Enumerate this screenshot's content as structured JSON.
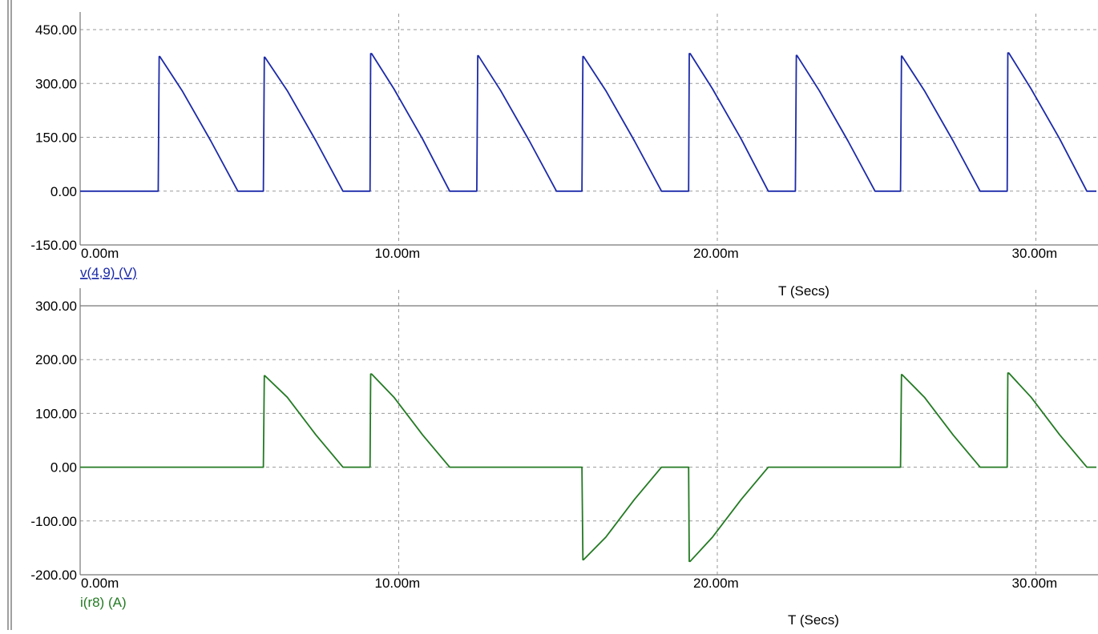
{
  "chart_data": [
    {
      "type": "line",
      "xlabel": "T (Secs)",
      "xlim": [
        0,
        0.0319
      ],
      "ylim": [
        -150,
        450
      ],
      "yticks": [
        -150,
        0,
        150,
        300,
        450
      ],
      "ytick_labels": [
        "-150.00",
        "0.00",
        "150.00",
        "300.00",
        "450.00"
      ],
      "xticks": [
        0,
        0.01,
        0.02,
        0.03
      ],
      "xtick_labels": [
        "0.00m",
        "10.00m",
        "20.00m",
        "30.00m"
      ],
      "grid": true,
      "series": [
        {
          "name": "v(4,9) (V)",
          "color": "#1c2aa8",
          "x": [
            0,
            0.00245,
            0.00248,
            0.0025,
            0.0032,
            0.0041,
            0.00495,
            0.00575,
            0.00578,
            0.0058,
            0.0065,
            0.0074,
            0.00825,
            0.0091,
            0.00912,
            0.00915,
            0.00985,
            0.01075,
            0.0116,
            0.01245,
            0.01248,
            0.0125,
            0.0132,
            0.0141,
            0.01495,
            0.01575,
            0.01578,
            0.0158,
            0.0165,
            0.0174,
            0.01825,
            0.0191,
            0.01912,
            0.01915,
            0.01985,
            0.02075,
            0.0216,
            0.02245,
            0.02248,
            0.0225,
            0.0232,
            0.0241,
            0.02495,
            0.02575,
            0.02578,
            0.0258,
            0.0265,
            0.0274,
            0.02825,
            0.0291,
            0.02912,
            0.02915,
            0.02985,
            0.03075,
            0.0316,
            0.0319
          ],
          "y": [
            0,
            0,
            375,
            375,
            280,
            140,
            0,
            0,
            373,
            373,
            280,
            140,
            0,
            0,
            383,
            383,
            285,
            145,
            0,
            0,
            377,
            377,
            280,
            140,
            0,
            0,
            375,
            375,
            280,
            140,
            0,
            0,
            383,
            383,
            285,
            145,
            0,
            0,
            378,
            378,
            280,
            140,
            0,
            0,
            376,
            376,
            280,
            140,
            0,
            0,
            385,
            385,
            285,
            145,
            0,
            0
          ]
        }
      ]
    },
    {
      "type": "line",
      "xlabel": "T (Secs)",
      "xlim": [
        0,
        0.0319
      ],
      "ylim": [
        -200,
        300
      ],
      "yticks": [
        -200,
        -100,
        0,
        100,
        200,
        300
      ],
      "ytick_labels": [
        "-200.00",
        "-100.00",
        "0.00",
        "100.00",
        "200.00",
        "300.00"
      ],
      "xticks": [
        0,
        0.01,
        0.02,
        0.03
      ],
      "xtick_labels": [
        "0.00m",
        "10.00m",
        "20.00m",
        "30.00m"
      ],
      "grid": true,
      "series": [
        {
          "name": "i(r8) (A)",
          "color": "#237a23",
          "x": [
            0,
            0.00575,
            0.00578,
            0.0058,
            0.0065,
            0.0074,
            0.00825,
            0.0091,
            0.00912,
            0.00915,
            0.00985,
            0.01075,
            0.0116,
            0.01575,
            0.01578,
            0.0158,
            0.0165,
            0.0174,
            0.01825,
            0.0191,
            0.01912,
            0.01915,
            0.01985,
            0.02075,
            0.0216,
            0.02575,
            0.02578,
            0.0258,
            0.0265,
            0.0274,
            0.02825,
            0.0291,
            0.02912,
            0.02915,
            0.02985,
            0.03075,
            0.0316,
            0.0319
          ],
          "y": [
            0,
            0,
            170,
            170,
            130,
            60,
            0,
            0,
            173,
            173,
            130,
            60,
            0,
            0,
            -172,
            -172,
            -130,
            -60,
            0,
            0,
            -175,
            -175,
            -130,
            -60,
            0,
            0,
            172,
            172,
            130,
            60,
            0,
            0,
            175,
            175,
            130,
            60,
            0,
            0
          ]
        }
      ]
    }
  ]
}
